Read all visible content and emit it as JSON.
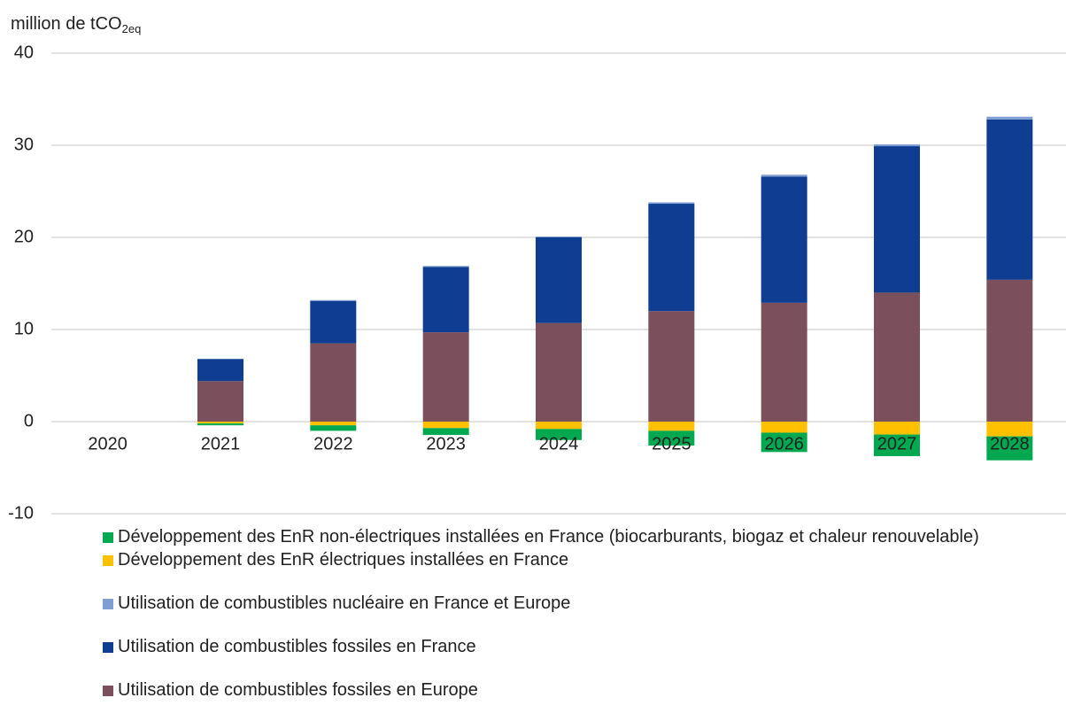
{
  "chart_data": {
    "type": "stacked_bar",
    "y_label": "million de tCO",
    "y_label_sub": "2eq",
    "categories": [
      "2020",
      "2021",
      "2022",
      "2023",
      "2024",
      "2025",
      "2026",
      "2027",
      "2028"
    ],
    "series": [
      {
        "name": "Développement des EnR non-électriques installées en France (biocarburants, biogaz et chaleur renouvelable)",
        "color": "#00a850",
        "values": [
          0,
          -0.2,
          -0.6,
          -0.75,
          -1.2,
          -1.6,
          -2.1,
          -2.35,
          -2.6
        ]
      },
      {
        "name": "Développement des EnR électriques installées en France",
        "color": "#ffc000",
        "values": [
          0,
          -0.2,
          -0.4,
          -0.7,
          -0.8,
          -1.0,
          -1.2,
          -1.4,
          -1.6
        ]
      },
      {
        "name": "Utilisation de combustibles nucléaire en France et Europe",
        "color": "#7f9fd4",
        "values": [
          0,
          0,
          0.1,
          0.1,
          0.1,
          0.15,
          0.2,
          0.2,
          0.3
        ]
      },
      {
        "name": "Utilisation de combustibles fossiles en France",
        "color": "#0f3d91",
        "values": [
          0,
          2.4,
          4.6,
          7.1,
          9.3,
          11.65,
          13.7,
          15.9,
          17.4
        ]
      },
      {
        "name": "Utilisation de combustibles fossiles en Europe",
        "color": "#7b4f5b",
        "values": [
          0,
          4.4,
          8.5,
          9.7,
          10.7,
          12.0,
          12.9,
          14.0,
          15.4
        ]
      }
    ],
    "ylim": [
      -10,
      40
    ],
    "yticks": [
      -10,
      0,
      10,
      20,
      30,
      40
    ],
    "grid": true
  }
}
